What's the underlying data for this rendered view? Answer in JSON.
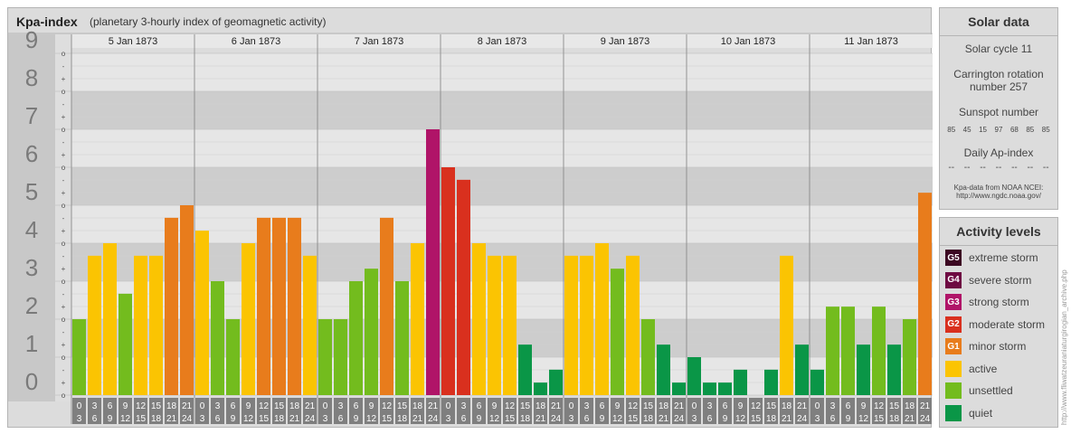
{
  "header": {
    "title": "Kpa-index",
    "subtitle": "(planetary 3-hourly index of geomagnetic activity)"
  },
  "chart_data": {
    "type": "bar",
    "ylim": [
      0,
      9
    ],
    "y_ticks": [
      "0",
      "1",
      "2",
      "3",
      "4",
      "5",
      "6",
      "7",
      "8",
      "9"
    ],
    "minor_ticks": [
      "-",
      "+",
      "o"
    ],
    "days": [
      "5 Jan 1873",
      "6 Jan 1873",
      "7 Jan 1873",
      "8 Jan 1873",
      "9 Jan 1873",
      "10 Jan 1873",
      "11 Jan 1873"
    ],
    "intervals": [
      [
        "0",
        "3"
      ],
      [
        "3",
        "6"
      ],
      [
        "6",
        "9"
      ],
      [
        "9",
        "12"
      ],
      [
        "12",
        "15"
      ],
      [
        "15",
        "18"
      ],
      [
        "18",
        "21"
      ],
      [
        "21",
        "24"
      ]
    ],
    "values": [
      [
        2.0,
        3.67,
        4.0,
        2.67,
        3.67,
        3.67,
        4.67,
        5.0
      ],
      [
        4.33,
        3.0,
        2.0,
        4.0,
        4.67,
        4.67,
        4.67,
        3.67
      ],
      [
        2.0,
        2.0,
        3.0,
        3.33,
        4.67,
        3.0,
        4.0,
        7.0
      ],
      [
        6.0,
        5.67,
        4.0,
        3.67,
        3.67,
        1.33,
        0.33,
        0.67
      ],
      [
        3.67,
        3.67,
        4.0,
        3.33,
        3.67,
        2.0,
        1.33,
        0.33
      ],
      [
        1.0,
        0.33,
        0.33,
        0.67,
        0.0,
        0.67,
        3.67,
        1.33
      ],
      [
        0.67,
        2.33,
        2.33,
        1.33,
        2.33,
        1.33,
        2.0,
        5.33
      ]
    ],
    "grid": true
  },
  "colors": {
    "quiet": "#0a9647",
    "unsettled": "#73bc1e",
    "active": "#fbc402",
    "minor": "#e87c1c",
    "moderate": "#d9301e",
    "strong": "#b01468",
    "severe": "#6e0b42",
    "extreme": "#3c0822"
  },
  "solar": {
    "title": "Solar data",
    "cycle": "Solar cycle 11",
    "rotation_line1": "Carrington rotation",
    "rotation_line2": "number 257",
    "sunspot_label": "Sunspot number",
    "sunspots": [
      "85",
      "45",
      "15",
      "97",
      "68",
      "85",
      "85"
    ],
    "ap_label": "Daily Ap-index",
    "ap_values": [
      "--",
      "--",
      "--",
      "--",
      "--",
      "--",
      "--"
    ],
    "source_line1": "Kpa-data from NOAA NCEI:",
    "source_line2": "http://www.ngdc.noaa.gov/"
  },
  "activity": {
    "title": "Activity levels",
    "levels": [
      {
        "code": "G5",
        "label": "extreme storm",
        "color": "#3c0822"
      },
      {
        "code": "G4",
        "label": "severe storm",
        "color": "#6e0b42"
      },
      {
        "code": "G3",
        "label": "strong storm",
        "color": "#b01468"
      },
      {
        "code": "G2",
        "label": "moderate storm",
        "color": "#d9301e"
      },
      {
        "code": "G1",
        "label": "minor storm",
        "color": "#e87c1c"
      },
      {
        "code": "",
        "label": "active",
        "color": "#fbc402"
      },
      {
        "code": "",
        "label": "unsettled",
        "color": "#73bc1e"
      },
      {
        "code": "",
        "label": "quiet",
        "color": "#0a9647"
      }
    ]
  },
  "credit": "http://www.fliwatzeuraniaturgirogian_archive.php"
}
